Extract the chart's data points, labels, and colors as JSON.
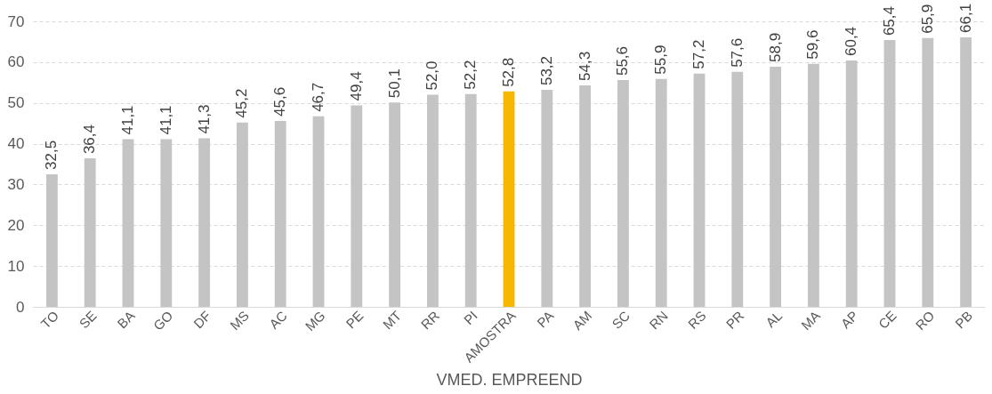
{
  "chart_data": {
    "type": "bar",
    "xlabel": "VMED. EMPREEND",
    "categories": [
      "TO",
      "SE",
      "BA",
      "GO",
      "DF",
      "MS",
      "AC",
      "MG",
      "PE",
      "MT",
      "RR",
      "PI",
      "AMOSTRA",
      "PA",
      "AM",
      "SC",
      "RN",
      "RS",
      "PR",
      "AL",
      "MA",
      "AP",
      "CE",
      "RO",
      "PB"
    ],
    "values": [
      32.5,
      36.4,
      41.1,
      41.1,
      41.3,
      45.2,
      45.6,
      46.7,
      49.4,
      50.1,
      52.0,
      52.2,
      52.8,
      53.2,
      54.3,
      55.6,
      55.9,
      57.2,
      57.6,
      58.9,
      59.6,
      60.4,
      65.4,
      65.9,
      66.1
    ],
    "value_labels": [
      "32,5",
      "36,4",
      "41,1",
      "41,1",
      "41,3",
      "45,2",
      "45,6",
      "46,7",
      "49,4",
      "50,1",
      "52,0",
      "52,2",
      "52,8",
      "53,2",
      "54,3",
      "55,6",
      "55,9",
      "57,2",
      "57,6",
      "58,9",
      "59,6",
      "60,4",
      "65,4",
      "65,9",
      "66,1"
    ],
    "colors": [
      "#c4c4c4",
      "#c4c4c4",
      "#c4c4c4",
      "#c4c4c4",
      "#c4c4c4",
      "#c4c4c4",
      "#c4c4c4",
      "#c4c4c4",
      "#c4c4c4",
      "#c4c4c4",
      "#c4c4c4",
      "#c4c4c4",
      "#f5b700",
      "#c4c4c4",
      "#c4c4c4",
      "#c4c4c4",
      "#c4c4c4",
      "#c4c4c4",
      "#c4c4c4",
      "#c4c4c4",
      "#c4c4c4",
      "#c4c4c4",
      "#c4c4c4",
      "#c4c4c4",
      "#c4c4c4"
    ],
    "ylim": [
      0,
      70
    ],
    "yticks": [
      0,
      10,
      20,
      30,
      40,
      50,
      60,
      70
    ],
    "grid": "y"
  }
}
